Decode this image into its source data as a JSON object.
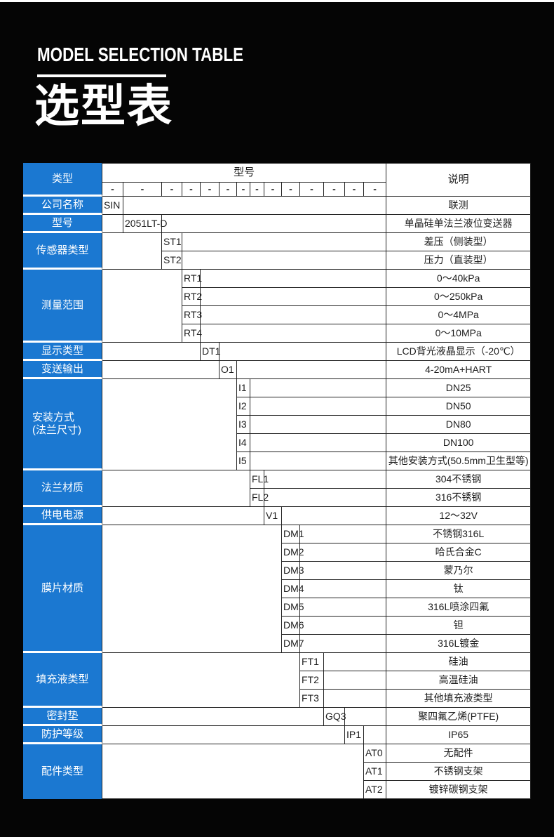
{
  "page": {
    "title_en": "MODEL SELECTION TABLE",
    "title_zh": "选型表"
  },
  "colors": {
    "accent_blue": "#1b78d1",
    "table_border": "#222222",
    "page_background": "#050505"
  },
  "table": {
    "header": {
      "type_label": "类型",
      "model_label": "型号",
      "desc_label": "说明",
      "dash": "-",
      "code_column_count": 14
    },
    "groups": [
      {
        "label": "公司名称",
        "col": 1,
        "rows": [
          {
            "code": "SIN",
            "desc": "联测"
          }
        ]
      },
      {
        "label": "型号",
        "col": 2,
        "rows": [
          {
            "code": "2051LT-D",
            "desc": "单晶硅单法兰液位变送器"
          }
        ]
      },
      {
        "label": "传感器类型",
        "col": 3,
        "rows": [
          {
            "code": "ST1",
            "desc": "差压（侧装型）"
          },
          {
            "code": "ST2",
            "desc": "压力（直装型）"
          }
        ]
      },
      {
        "label": "测量范围",
        "col": 4,
        "rows": [
          {
            "code": "RT1",
            "desc": "0～40kPa"
          },
          {
            "code": "RT2",
            "desc": "0～250kPa"
          },
          {
            "code": "RT3",
            "desc": "0～4MPa"
          },
          {
            "code": "RT4",
            "desc": "0～10MPa"
          }
        ]
      },
      {
        "label": "显示类型",
        "col": 5,
        "rows": [
          {
            "code": "DT1",
            "desc": "LCD背光液晶显示（-20℃）"
          }
        ]
      },
      {
        "label": "变送输出",
        "col": 6,
        "rows": [
          {
            "code": "O1",
            "desc": "4-20mA+HART"
          }
        ]
      },
      {
        "label": "安装方式",
        "label2": "(法兰尺寸)",
        "col": 7,
        "rows": [
          {
            "code": "I1",
            "desc": "DN25"
          },
          {
            "code": "I2",
            "desc": "DN50"
          },
          {
            "code": "I3",
            "desc": "DN80"
          },
          {
            "code": "I4",
            "desc": "DN100"
          },
          {
            "code": "I5",
            "desc": "其他安装方式(50.5mm卫生型等)"
          }
        ]
      },
      {
        "label": "法兰材质",
        "col": 8,
        "rows": [
          {
            "code": "FL1",
            "desc": "304不锈钢"
          },
          {
            "code": "FL2",
            "desc": "316不锈钢"
          }
        ]
      },
      {
        "label": "供电电源",
        "col": 9,
        "rows": [
          {
            "code": "V1",
            "desc": "12～32V"
          }
        ]
      },
      {
        "label": "膜片材质",
        "col": 10,
        "rows": [
          {
            "code": "DM1",
            "desc": "不锈钢316L"
          },
          {
            "code": "DM2",
            "desc": "哈氏合金C"
          },
          {
            "code": "DM3",
            "desc": "蒙乃尔"
          },
          {
            "code": "DM4",
            "desc": "钛"
          },
          {
            "code": "DM5",
            "desc": "316L喷涂四氟"
          },
          {
            "code": "DM6",
            "desc": "钽"
          },
          {
            "code": "DM7",
            "desc": "316L镀金"
          }
        ]
      },
      {
        "label": "填充液类型",
        "col": 11,
        "rows": [
          {
            "code": "FT1",
            "desc": "硅油"
          },
          {
            "code": "FT2",
            "desc": "高温硅油"
          },
          {
            "code": "FT3",
            "desc": "其他填充液类型"
          }
        ]
      },
      {
        "label": "密封垫",
        "col": 12,
        "rows": [
          {
            "code": "GQ3",
            "desc": "聚四氟乙烯(PTFE)"
          }
        ]
      },
      {
        "label": "防护等级",
        "col": 13,
        "rows": [
          {
            "code": "IP1",
            "desc": "IP65"
          }
        ]
      },
      {
        "label": "配件类型",
        "col": 14,
        "rows": [
          {
            "code": "AT0",
            "desc": "无配件"
          },
          {
            "code": "AT1",
            "desc": "不锈钢支架"
          },
          {
            "code": "AT2",
            "desc": "镀锌碳钢支架"
          }
        ]
      }
    ]
  }
}
